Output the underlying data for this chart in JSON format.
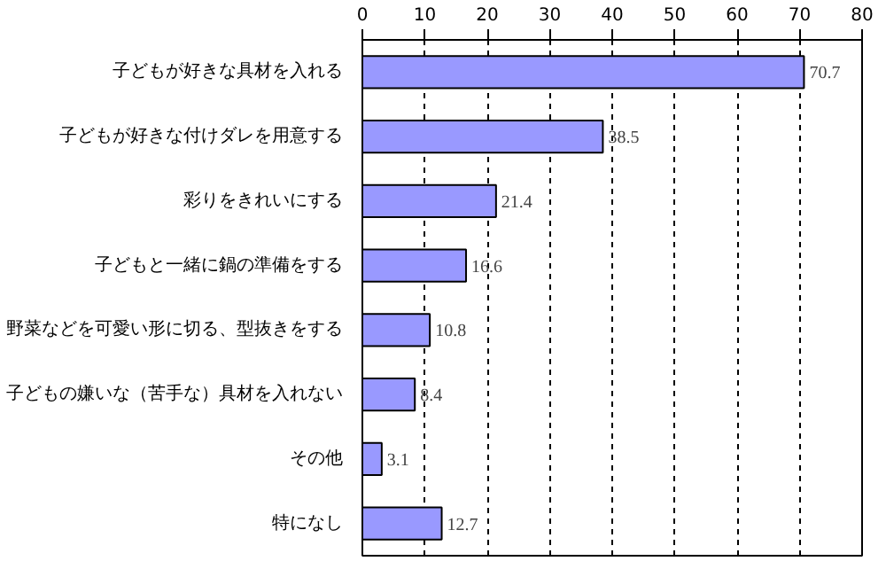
{
  "chart_data": {
    "type": "bar",
    "orientation": "horizontal",
    "categories": [
      "子どもが好きな具材を入れる",
      "子どもが好きな付けダレを用意する",
      "彩りをきれいにする",
      "子どもと一緒に鍋の準備をする",
      "野菜などを可愛い形に切る、型抜きをする",
      "子どもの嫌いな（苦手な）具材を入れない",
      "その他",
      "特になし"
    ],
    "values": [
      70.7,
      38.5,
      21.4,
      16.6,
      10.8,
      8.4,
      3.1,
      12.7
    ],
    "color": "#9999ff",
    "xlim": [
      0,
      80
    ],
    "xticks": [
      0,
      10,
      20,
      30,
      40,
      50,
      60,
      70,
      80
    ],
    "grid": "x",
    "data_labels": true
  }
}
